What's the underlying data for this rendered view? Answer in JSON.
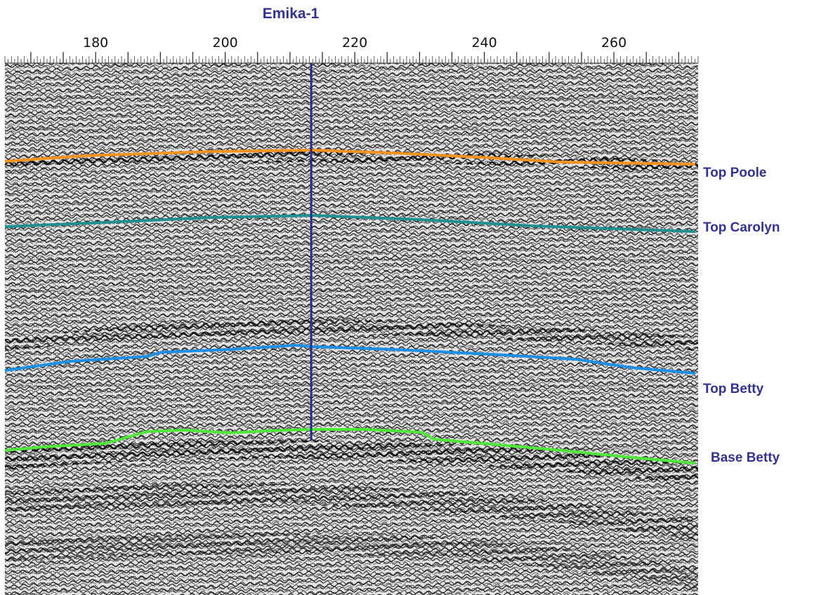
{
  "well": {
    "name": "Emika-1",
    "color": "#2b2b8c"
  },
  "axis": {
    "tick_labels": [
      "180",
      "200",
      "220",
      "240",
      "260"
    ],
    "range": [
      166,
      273
    ]
  },
  "horizons": [
    {
      "name": "Top Poole",
      "color": "#f7931e",
      "label_color": "#33338f"
    },
    {
      "name": "Top Carolyn",
      "color": "#1f8f8f",
      "label_color": "#33338f"
    },
    {
      "name": "Top Betty",
      "color": "#1c8fe6",
      "label_color": "#33338f"
    },
    {
      "name": "Base Betty",
      "color": "#4fe83a",
      "label_color": "#33338f"
    }
  ]
}
